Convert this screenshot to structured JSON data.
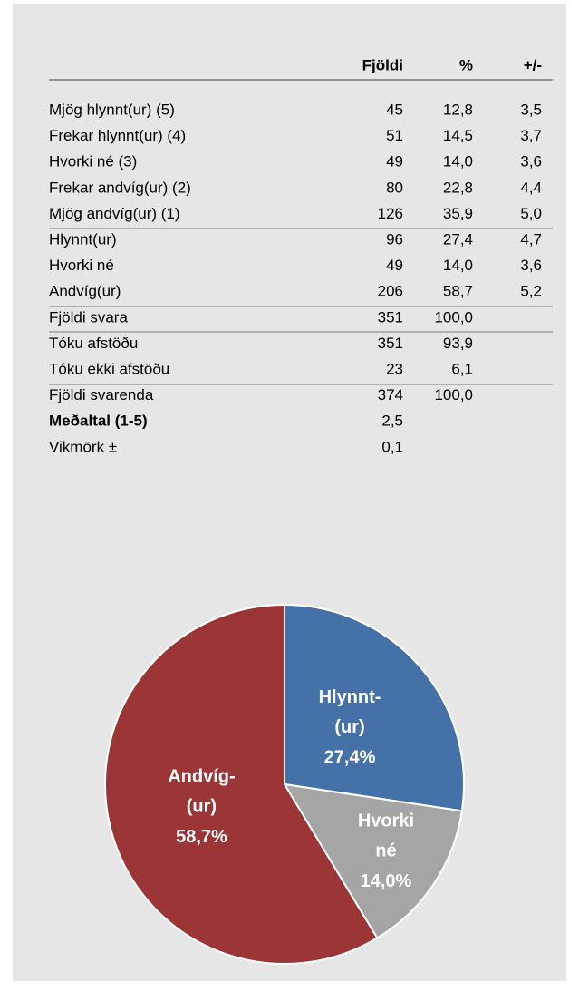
{
  "table": {
    "header": [
      "Fjöldi",
      "%",
      "+/-"
    ],
    "rows": [
      [
        "Mjög hlynnt(ur) (5)",
        "45",
        "12,8",
        "3,5"
      ],
      [
        "Frekar hlynnt(ur) (4)",
        "51",
        "14,5",
        "3,7"
      ],
      [
        "Hvorki né (3)",
        "49",
        "14,0",
        "3,6"
      ],
      [
        "Frekar andvíg(ur) (2)",
        "80",
        "22,8",
        "4,4"
      ],
      [
        "Mjög andvíg(ur) (1)",
        "126",
        "35,9",
        "5,0"
      ],
      [
        "Hlynnt(ur)",
        "96",
        "27,4",
        "4,7"
      ],
      [
        "Hvorki né",
        "49",
        "14,0",
        "3,6"
      ],
      [
        "Andvíg(ur)",
        "206",
        "58,7",
        "5,2"
      ],
      [
        "Fjöldi svara",
        "351",
        "100,0"
      ],
      [
        "Tóku afstöðu",
        "351",
        "93,9"
      ],
      [
        "Tóku ekki afstöðu",
        "23",
        "6,1"
      ],
      [
        "Fjöldi svarenda",
        "374",
        "100,0"
      ],
      [
        "Meðaltal (1-5)",
        "2,5"
      ],
      [
        "Vikmörk ±",
        "0,1"
      ]
    ],
    "bold_rows": [
      12
    ]
  },
  "chart_data": {
    "type": "pie",
    "categories": [
      "Hlynnt- (ur)",
      "Hvorki né",
      "Andvíg- (ur)"
    ],
    "values": [
      27.4,
      14.0,
      58.7
    ],
    "value_labels": [
      "27,4%",
      "14,0%",
      "58,7%"
    ],
    "colors": [
      "#4472a8",
      "#a5a5a5",
      "#9c3535"
    ]
  }
}
